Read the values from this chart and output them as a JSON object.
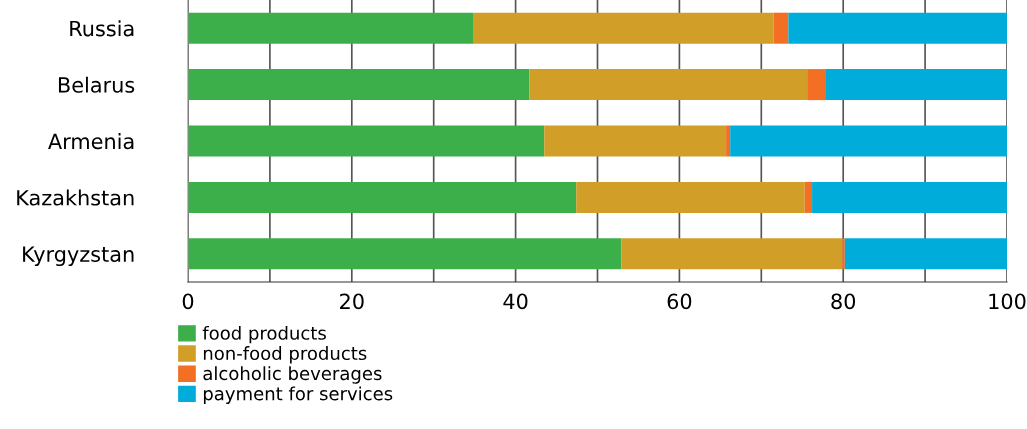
{
  "chart_data": {
    "type": "bar",
    "orientation": "horizontal",
    "stacked": true,
    "categories": [
      "Russia",
      "Belarus",
      "Armenia",
      "Kazakhstan",
      "Kyrgyzstan"
    ],
    "series": [
      {
        "name": "food products",
        "color": "#3daf4a",
        "values": [
          34.8,
          41.7,
          43.5,
          47.4,
          52.9
        ]
      },
      {
        "name": "non-food products",
        "color": "#d19e28",
        "values": [
          36.7,
          33.9,
          22.2,
          27.9,
          27.0
        ]
      },
      {
        "name": "alcoholic beverages",
        "color": "#f26f23",
        "values": [
          1.8,
          2.3,
          0.5,
          0.9,
          0.3
        ]
      },
      {
        "name": "payment for services",
        "color": "#00acd9",
        "values": [
          26.7,
          22.1,
          33.8,
          23.8,
          19.8
        ]
      }
    ],
    "xlim": [
      0,
      100
    ],
    "xticks": [
      0,
      {
        "value": 10,
        "label": null
      },
      20,
      {
        "value": 30,
        "label": null
      },
      40,
      {
        "value": 50,
        "label": null
      },
      60,
      {
        "value": 70,
        "label": null
      },
      80,
      {
        "value": 90,
        "label": null
      },
      100
    ],
    "grid": "x",
    "legend": "bottom left"
  }
}
